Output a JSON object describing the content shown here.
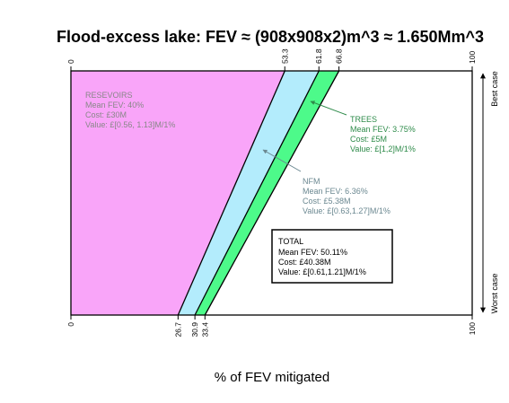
{
  "chart_data": {
    "type": "area",
    "title": "Flood-excess lake: FEV ≈ (908x908x2)m^3 ≈ 1.650Mm^3",
    "xlabel": "% of FEV mitigated",
    "xlim": [
      0,
      100
    ],
    "top_ticks": [
      "0",
      "53.3",
      "61.8",
      "66.8",
      "100"
    ],
    "bottom_ticks": [
      "0",
      "26.7",
      "30.9",
      "33.4",
      "100"
    ],
    "right_axis": {
      "top_label": "Best case",
      "bottom_label": "Worst case"
    },
    "series": [
      {
        "name": "RESEVOIRS",
        "lines": [
          "RESEVOIRS",
          "Mean FEV: 40%",
          "Cost: £30M",
          "Value: £[0.56, 1.13]M/1%"
        ],
        "best": 53.3,
        "worst": 26.7,
        "fill": "#f9a5f9",
        "text_color": "#888888"
      },
      {
        "name": "NFM",
        "lines": [
          "NFM",
          "Mean FEV: 6.36%",
          "Cost: £5.38M",
          "Value: £[0.63,1.27]M/1%"
        ],
        "best": 61.8,
        "worst": 30.9,
        "fill": "#b3ecfc",
        "text_color": "#6b8891"
      },
      {
        "name": "TREES",
        "lines": [
          "TREES",
          "Mean FEV: 3.75%",
          "Cost: £5M",
          "Value: £[1,2]M/1%"
        ],
        "best": 66.8,
        "worst": 33.4,
        "fill": "#4dfa8a",
        "text_color": "#2e8b4a"
      }
    ],
    "total_box": {
      "lines": [
        "TOTAL",
        "Mean FEV: 50.11%",
        "Cost: £40.38M",
        "Value: £[0.61,1.21]M/1%"
      ]
    }
  }
}
